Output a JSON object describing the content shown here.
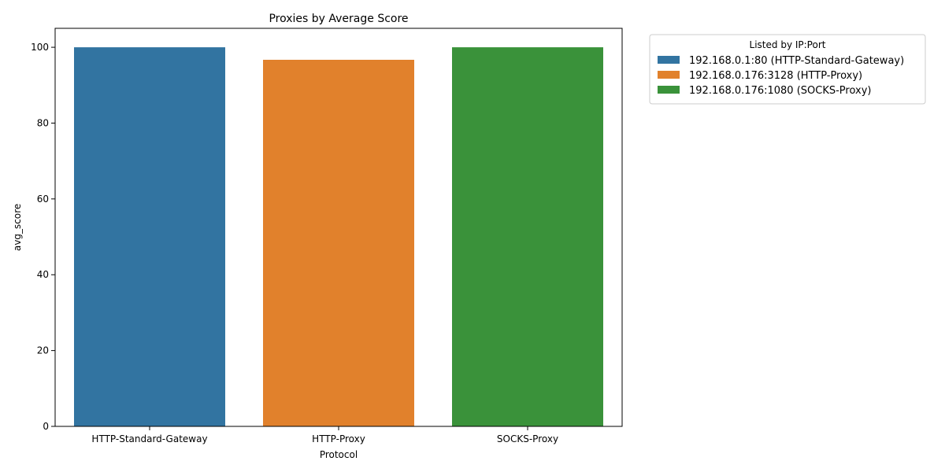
{
  "chart_data": {
    "type": "bar",
    "title": "Proxies by Average Score",
    "xlabel": "Protocol",
    "ylabel": "avg_score",
    "categories": [
      "HTTP-Standard-Gateway",
      "HTTP-Proxy",
      "SOCKS-Proxy"
    ],
    "values": [
      100,
      96.7,
      100
    ],
    "colors": [
      "#3274a1",
      "#e1812c",
      "#3a923a"
    ],
    "ylim": [
      0,
      105
    ],
    "yticks": [
      0,
      20,
      40,
      60,
      80,
      100
    ],
    "grid": false,
    "legend": {
      "title": "Listed by IP:Port",
      "placement": "outside-top-right",
      "entries": [
        "192.168.0.1:80 (HTTP-Standard-Gateway)",
        "192.168.0.176:3128 (HTTP-Proxy)",
        "192.168.0.176:1080 (SOCKS-Proxy)"
      ]
    }
  }
}
